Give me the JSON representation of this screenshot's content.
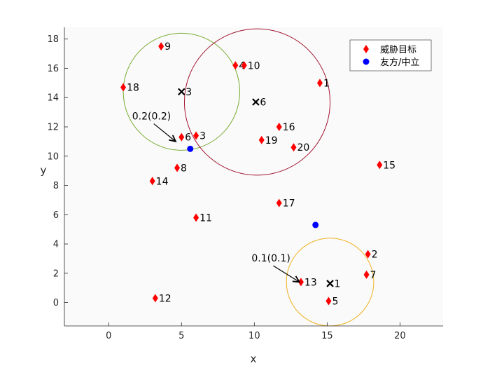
{
  "chart_data": {
    "type": "scatter",
    "title": "",
    "xlabel": "x",
    "ylabel": "y",
    "xlim": [
      -3.04,
      22.96
    ],
    "ylim": [
      -1.6,
      18.8
    ],
    "xticks": [
      0,
      5,
      10,
      15,
      20
    ],
    "yticks": [
      0,
      2,
      4,
      6,
      8,
      10,
      12,
      14,
      16,
      18
    ],
    "grid": false,
    "legend_position": "top-right",
    "legend": [
      {
        "label": "威胁目标",
        "marker": "diamond",
        "color": "#ff0000"
      },
      {
        "label": "友方/中立",
        "marker": "circle",
        "color": "#0000ff"
      }
    ],
    "threat_targets": [
      {
        "label": "1",
        "x": 14.5,
        "y": 15.0
      },
      {
        "label": "2",
        "x": 17.8,
        "y": 3.3
      },
      {
        "label": "3",
        "x": 6.0,
        "y": 11.4
      },
      {
        "label": "4",
        "x": 8.7,
        "y": 16.2
      },
      {
        "label": "5",
        "x": 15.1,
        "y": 0.1
      },
      {
        "label": "6",
        "x": 5.0,
        "y": 11.3
      },
      {
        "label": "7",
        "x": 17.7,
        "y": 1.9
      },
      {
        "label": "8",
        "x": 4.7,
        "y": 9.2
      },
      {
        "label": "9",
        "x": 3.6,
        "y": 17.5
      },
      {
        "label": "10",
        "x": 9.3,
        "y": 16.2
      },
      {
        "label": "11",
        "x": 6.0,
        "y": 5.8
      },
      {
        "label": "12",
        "x": 3.2,
        "y": 0.3
      },
      {
        "label": "13",
        "x": 13.2,
        "y": 1.4
      },
      {
        "label": "14",
        "x": 3.0,
        "y": 8.3
      },
      {
        "label": "15",
        "x": 18.6,
        "y": 9.4
      },
      {
        "label": "16",
        "x": 11.7,
        "y": 12.0
      },
      {
        "label": "17",
        "x": 11.7,
        "y": 6.8
      },
      {
        "label": "18",
        "x": 1.0,
        "y": 14.7
      },
      {
        "label": "19",
        "x": 10.5,
        "y": 11.1
      },
      {
        "label": "20",
        "x": 12.7,
        "y": 10.6
      }
    ],
    "friendly_neutral": [
      {
        "x": 5.6,
        "y": 10.5
      },
      {
        "x": 14.2,
        "y": 5.3
      }
    ],
    "centers": [
      {
        "label": "1",
        "x": 15.2,
        "y": 1.3
      },
      {
        "label": "3",
        "x": 5.0,
        "y": 14.4
      },
      {
        "label": "6",
        "x": 10.1,
        "y": 13.7
      }
    ],
    "circles": [
      {
        "cx": 5.0,
        "cy": 14.4,
        "r": 4.0,
        "color": "#77ac30"
      },
      {
        "cx": 10.2,
        "cy": 13.7,
        "r": 5.0,
        "color": "#a2142f"
      },
      {
        "cx": 15.2,
        "cy": 1.4,
        "r": 3.0,
        "color": "#edb120"
      }
    ],
    "annotations": [
      {
        "text": "0.2(0.2)",
        "x": 3.1,
        "y": 12.5,
        "arrow_to_x": 4.6,
        "arrow_to_y": 11.0
      },
      {
        "text": "0.1(0.1)",
        "x": 11.3,
        "y": 2.8,
        "arrow_to_x": 13.1,
        "arrow_to_y": 1.4
      }
    ]
  }
}
